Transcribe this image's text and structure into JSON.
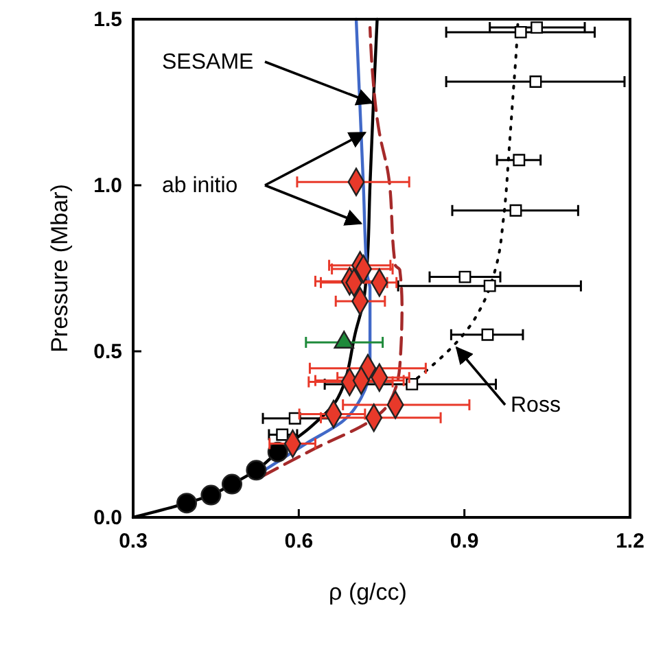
{
  "chart_data": {
    "type": "scatter",
    "xlabel": "ρ (g/cc)",
    "ylabel": "Pressure (Mbar)",
    "xlim": [
      0.3,
      1.2
    ],
    "ylim": [
      0,
      1.5
    ],
    "xticks": [
      0.3,
      0.6,
      0.9,
      1.2
    ],
    "yticks": [
      {
        "value": 0,
        "label": "0.0"
      },
      {
        "value": 0.5,
        "label": "0.5"
      },
      {
        "value": 1,
        "label": "1.0"
      },
      {
        "value": 1.5,
        "label": "1.5"
      }
    ],
    "grid": false,
    "series": [
      {
        "type": "line",
        "color": "#000000",
        "marker": "none",
        "line_style": "solid",
        "x": [
          0.3,
          0.397,
          0.441,
          0.479,
          0.523,
          0.562,
          0.62,
          0.671,
          0.704,
          0.717,
          0.724,
          0.729,
          0.736,
          0.742
        ],
        "values": [
          0,
          0.043,
          0.067,
          0.1,
          0.142,
          0.197,
          0.27,
          0.36,
          0.566,
          0.649,
          0.77,
          1.0,
          1.282,
          1.5
        ]
      },
      {
        "type": "line",
        "color": "#4169c8",
        "marker": "none",
        "line_style": "solid",
        "x": [
          0.535,
          0.613,
          0.68,
          0.713,
          0.729,
          0.729,
          0.724,
          0.717,
          0.704
        ],
        "values": [
          0.139,
          0.222,
          0.29,
          0.36,
          0.456,
          0.69,
          0.73,
          1.0,
          1.5
        ]
      },
      {
        "type": "line",
        "color": "#a52a2a",
        "marker": "none",
        "line_style": "dashed",
        "x": [
          0.535,
          0.63,
          0.729,
          0.762,
          0.783,
          0.787,
          0.783,
          0.775,
          0.762,
          0.746,
          0.733,
          0.729
        ],
        "values": [
          0.125,
          0.208,
          0.29,
          0.34,
          0.456,
          0.635,
          0.745,
          0.759,
          1.034,
          1.158,
          1.351,
          1.475
        ]
      },
      {
        "type": "line",
        "color": "#000000",
        "marker": "none",
        "line_style": "dotted",
        "x": [
          0.8,
          0.816,
          0.843,
          0.87,
          0.913,
          0.929,
          0.959,
          0.971,
          0.982,
          0.988,
          0.994,
          0.997
        ],
        "values": [
          0.4,
          0.421,
          0.459,
          0.5,
          0.583,
          0.628,
          0.766,
          0.903,
          1.131,
          1.269,
          1.406,
          1.496
        ]
      },
      {
        "color": "#000000",
        "marker": "circle",
        "x": [
          0.397,
          0.441,
          0.479,
          0.523,
          0.562
        ],
        "values": [
          0.043,
          0.067,
          0.1,
          0.142,
          0.197
        ]
      },
      {
        "color": "#000000",
        "marker": "square",
        "x": [
          1.031,
          1.002,
          1.029,
          0.999,
          0.993,
          0.901,
          0.946,
          0.942,
          0.805,
          0.593,
          0.57
        ],
        "values": [
          1.475,
          1.461,
          1.312,
          1.076,
          0.924,
          0.724,
          0.697,
          0.55,
          0.401,
          0.298,
          0.249
        ],
        "xerrors": [
          [
            0.946,
            1.118
          ],
          [
            0.867,
            1.136
          ],
          [
            0.867,
            1.19
          ],
          [
            0.959,
            1.038
          ],
          [
            0.878,
            1.106
          ],
          [
            0.837,
            0.965
          ],
          [
            0.78,
            1.111
          ],
          [
            0.876,
            1.006
          ],
          [
            0.647,
            0.957
          ],
          [
            0.535,
            0.663
          ],
          [
            0.546,
            0.597
          ]
        ]
      },
      {
        "color": "#e8392a",
        "marker": "diamond",
        "x": [
          0.704,
          0.711,
          0.717,
          0.692,
          0.7,
          0.746,
          0.711,
          0.725,
          0.746,
          0.692,
          0.713,
          0.663,
          0.736,
          0.775,
          0.589
        ],
        "values": [
          1.01,
          0.759,
          0.748,
          0.711,
          0.707,
          0.707,
          0.651,
          0.449,
          0.421,
          0.408,
          0.412,
          0.311,
          0.3,
          0.339,
          0.222
        ],
        "xerrors": [
          [
            0.597,
            0.8
          ],
          [
            0.655,
            0.766
          ],
          [
            0.66,
            0.77
          ],
          [
            0.63,
            0.75
          ],
          [
            0.64,
            0.76
          ],
          [
            0.688,
            0.777
          ],
          [
            0.667,
            0.756
          ],
          [
            0.62,
            0.83
          ],
          [
            0.67,
            0.8
          ],
          [
            0.618,
            0.77
          ],
          [
            0.63,
            0.79
          ],
          [
            0.601,
            0.72
          ],
          [
            0.64,
            0.857
          ],
          [
            0.68,
            0.909
          ],
          [
            0.547,
            0.63
          ]
        ]
      },
      {
        "color": "#1e8a3a",
        "marker": "triangle",
        "x": [
          0.682
        ],
        "values": [
          0.527
        ],
        "xerrors": [
          [
            0.613,
            0.752
          ]
        ]
      }
    ],
    "annotations": [
      {
        "text": "SESAME",
        "x": 0.733,
        "y": 1.248
      },
      {
        "text": "ab initio",
        "x": 0.72,
        "y": 1.158
      },
      {
        "text": "Ross",
        "x": 0.886,
        "y": 0.511
      }
    ]
  }
}
